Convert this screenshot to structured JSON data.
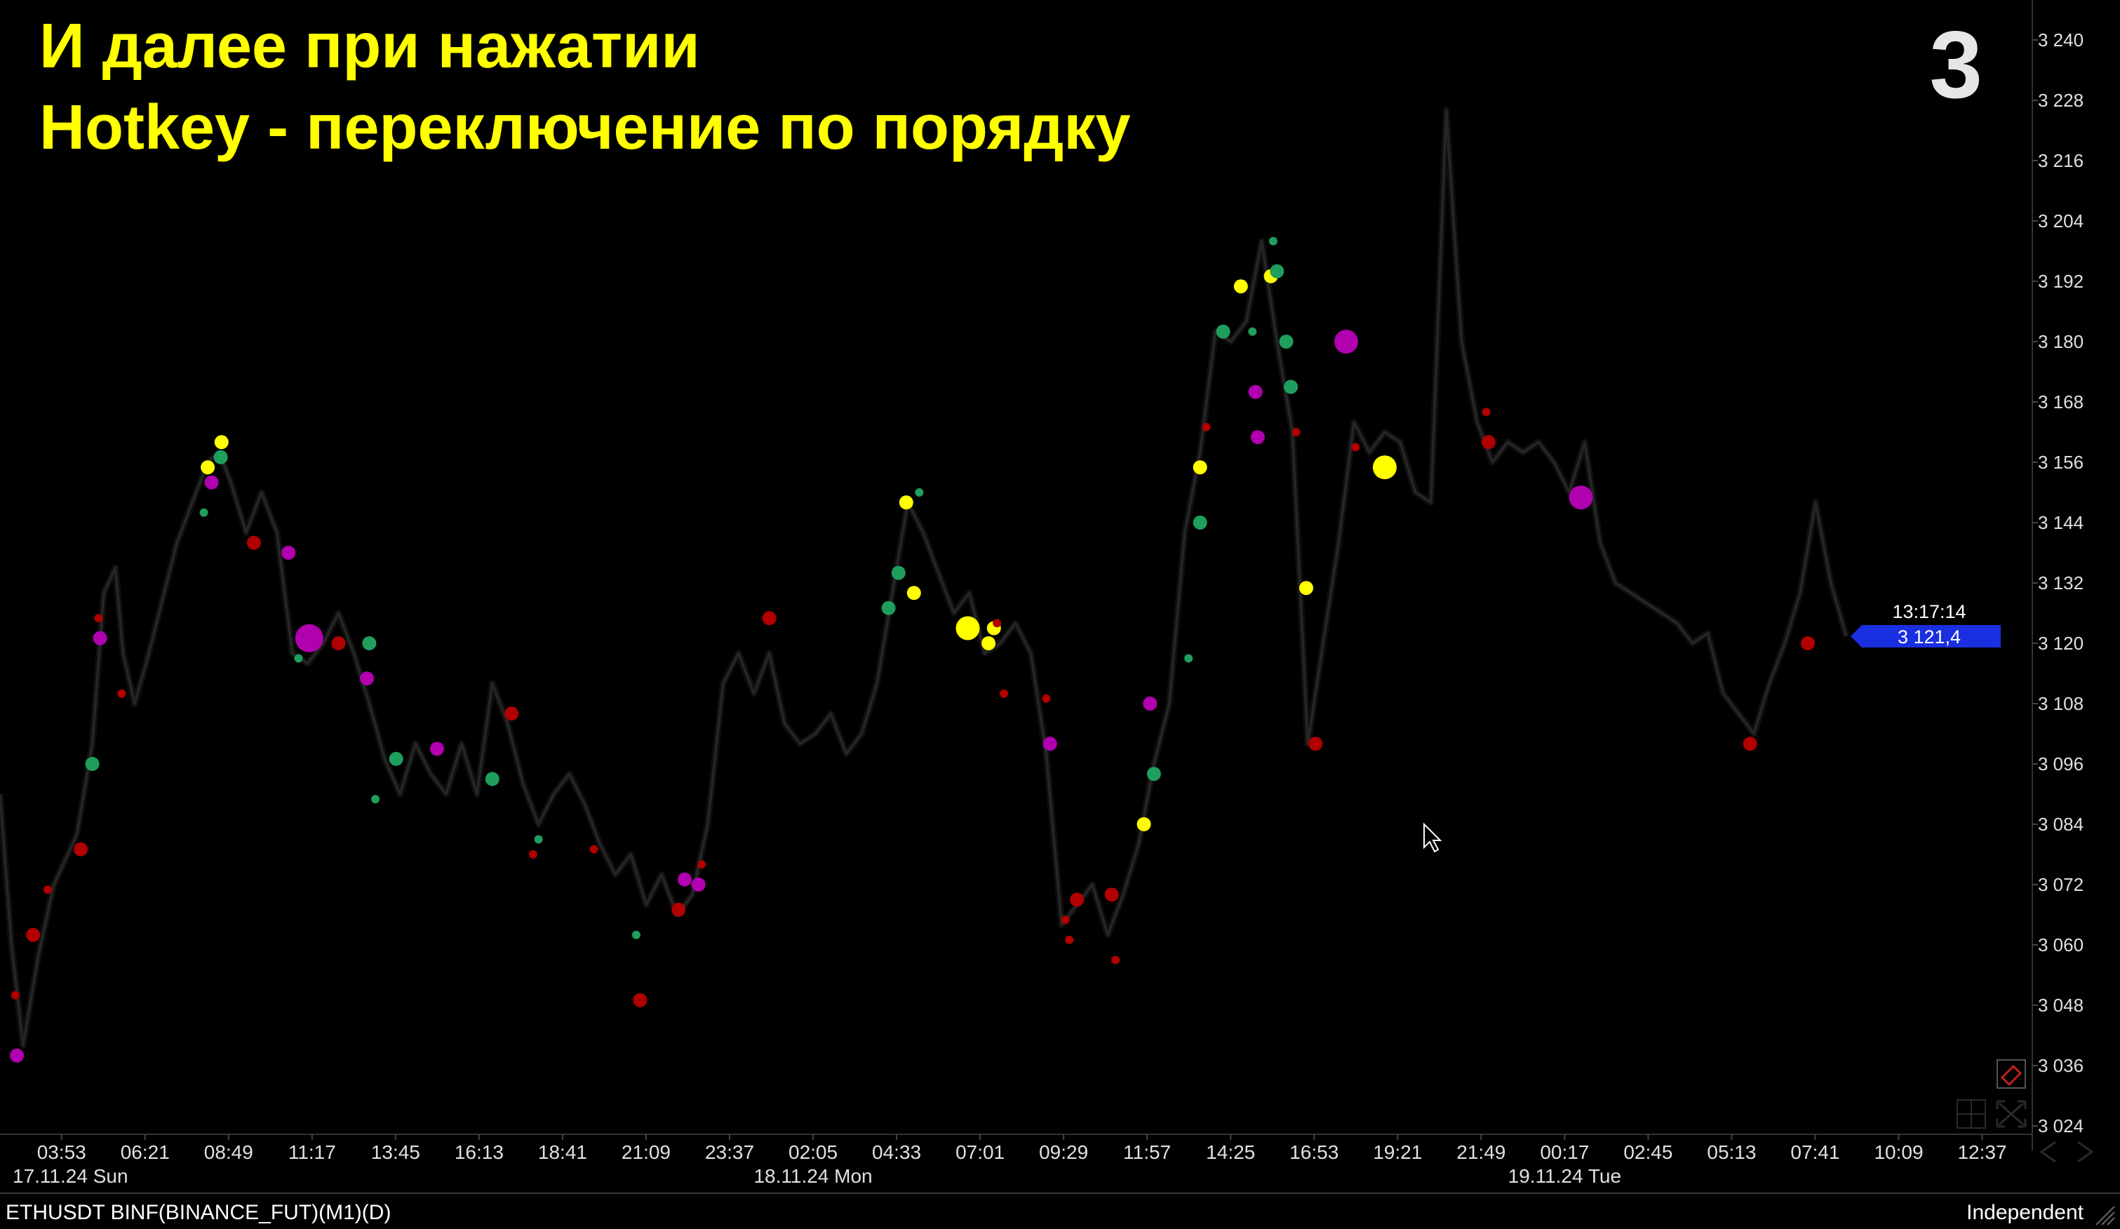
{
  "overlay": {
    "title_line_1": "И далее при нажатии",
    "title_line_2": "Hotkey - переключение по порядку",
    "step_number": "3"
  },
  "status_bar": {
    "symbol": "ETHUSDT BINF(BINANCE_FUT)(M1)(D)",
    "scale_mode": "Independent"
  },
  "crosshair": {
    "time": "13:17:14",
    "price": "3 121,4"
  },
  "icons": [
    "ruler-icon",
    "grid-icon",
    "fullscreen-icon",
    "scroll-left-icon",
    "scroll-right-icon",
    "mouse-cursor-icon"
  ],
  "colors": {
    "background": "#000000",
    "title": "#ffff00",
    "price_line": "#2e2e2e",
    "price_label": "#1a2fe0",
    "dot_red": "#b00000",
    "dot_green": "#1f9e5e",
    "dot_magenta": "#b000b0",
    "dot_yellow": "#ffff00"
  },
  "chart_data": {
    "type": "line",
    "ylim": [
      3024,
      3240
    ],
    "y_ticks": [
      "3 024",
      "3 036",
      "3 048",
      "3 060",
      "3 072",
      "3 084",
      "3 096",
      "3 108",
      "3 120",
      "3 132",
      "3 144",
      "3 156",
      "3 168",
      "3 180",
      "3 192",
      "3 204",
      "3 216",
      "3 228",
      "3 240"
    ],
    "y_tick_values": [
      3024,
      3036,
      3048,
      3060,
      3072,
      3084,
      3096,
      3108,
      3120,
      3132,
      3144,
      3156,
      3168,
      3180,
      3192,
      3204,
      3216,
      3228,
      3240
    ],
    "x_ticks": [
      "03:53",
      "06:21",
      "08:49",
      "11:17",
      "13:45",
      "16:13",
      "18:41",
      "21:09",
      "23:37",
      "02:05",
      "04:33",
      "07:01",
      "09:29",
      "11:57",
      "14:25",
      "16:53",
      "19:21",
      "21:49",
      "00:17",
      "02:45",
      "05:13",
      "07:41",
      "10:09",
      "12:37"
    ],
    "date_labels": [
      "17.11.24 Sun",
      "18.11.24 Mon",
      "19.11.24 Tue"
    ],
    "date_label_at_tick": [
      -1,
      9,
      18
    ],
    "x_tick_start_index": 0.8,
    "xlim": [
      0,
      26.4
    ],
    "grid": false,
    "series": [
      {
        "values": [
          [
            0.0,
            3090
          ],
          [
            0.15,
            3060
          ],
          [
            0.3,
            3040
          ],
          [
            0.5,
            3058
          ],
          [
            0.7,
            3072
          ],
          [
            1.0,
            3082
          ],
          [
            1.2,
            3100
          ],
          [
            1.35,
            3130
          ],
          [
            1.5,
            3135
          ],
          [
            1.6,
            3118
          ],
          [
            1.75,
            3108
          ],
          [
            1.9,
            3116
          ],
          [
            2.1,
            3128
          ],
          [
            2.3,
            3140
          ],
          [
            2.5,
            3148
          ],
          [
            2.7,
            3156
          ],
          [
            2.85,
            3158
          ],
          [
            3.0,
            3152
          ],
          [
            3.2,
            3142
          ],
          [
            3.4,
            3150
          ],
          [
            3.6,
            3142
          ],
          [
            3.8,
            3118
          ],
          [
            4.0,
            3116
          ],
          [
            4.2,
            3120
          ],
          [
            4.4,
            3126
          ],
          [
            4.6,
            3118
          ],
          [
            4.8,
            3108
          ],
          [
            5.0,
            3097
          ],
          [
            5.2,
            3090
          ],
          [
            5.4,
            3100
          ],
          [
            5.6,
            3094
          ],
          [
            5.8,
            3090
          ],
          [
            6.0,
            3100
          ],
          [
            6.2,
            3090
          ],
          [
            6.4,
            3112
          ],
          [
            6.6,
            3104
          ],
          [
            6.8,
            3092
          ],
          [
            7.0,
            3084
          ],
          [
            7.2,
            3090
          ],
          [
            7.4,
            3094
          ],
          [
            7.6,
            3088
          ],
          [
            7.8,
            3080
          ],
          [
            8.0,
            3074
          ],
          [
            8.2,
            3078
          ],
          [
            8.4,
            3068
          ],
          [
            8.6,
            3074
          ],
          [
            8.8,
            3066
          ],
          [
            9.0,
            3070
          ],
          [
            9.2,
            3084
          ],
          [
            9.4,
            3112
          ],
          [
            9.6,
            3118
          ],
          [
            9.8,
            3110
          ],
          [
            10.0,
            3118
          ],
          [
            10.2,
            3104
          ],
          [
            10.4,
            3100
          ],
          [
            10.6,
            3102
          ],
          [
            10.8,
            3106
          ],
          [
            11.0,
            3098
          ],
          [
            11.2,
            3102
          ],
          [
            11.4,
            3112
          ],
          [
            11.6,
            3130
          ],
          [
            11.8,
            3148
          ],
          [
            12.0,
            3142
          ],
          [
            12.2,
            3134
          ],
          [
            12.4,
            3126
          ],
          [
            12.6,
            3130
          ],
          [
            12.8,
            3118
          ],
          [
            13.0,
            3120
          ],
          [
            13.2,
            3124
          ],
          [
            13.4,
            3118
          ],
          [
            13.6,
            3098
          ],
          [
            13.8,
            3064
          ],
          [
            14.0,
            3068
          ],
          [
            14.2,
            3072
          ],
          [
            14.4,
            3062
          ],
          [
            14.6,
            3070
          ],
          [
            14.8,
            3080
          ],
          [
            15.0,
            3096
          ],
          [
            15.2,
            3108
          ],
          [
            15.4,
            3142
          ],
          [
            15.6,
            3158
          ],
          [
            15.8,
            3182
          ],
          [
            16.0,
            3180
          ],
          [
            16.2,
            3184
          ],
          [
            16.4,
            3200
          ],
          [
            16.6,
            3180
          ],
          [
            16.8,
            3162
          ],
          [
            17.0,
            3100
          ],
          [
            17.2,
            3120
          ],
          [
            17.4,
            3140
          ],
          [
            17.6,
            3164
          ],
          [
            17.8,
            3158
          ],
          [
            18.0,
            3162
          ],
          [
            18.2,
            3160
          ],
          [
            18.4,
            3150
          ],
          [
            18.6,
            3148
          ],
          [
            18.8,
            3226
          ],
          [
            19.0,
            3180
          ],
          [
            19.2,
            3164
          ],
          [
            19.4,
            3156
          ],
          [
            19.6,
            3160
          ],
          [
            19.8,
            3158
          ],
          [
            20.0,
            3160
          ],
          [
            20.2,
            3156
          ],
          [
            20.4,
            3150
          ],
          [
            20.6,
            3160
          ],
          [
            20.8,
            3140
          ],
          [
            21.0,
            3132
          ],
          [
            21.2,
            3130
          ],
          [
            21.4,
            3128
          ],
          [
            21.6,
            3126
          ],
          [
            21.8,
            3124
          ],
          [
            22.0,
            3120
          ],
          [
            22.2,
            3122
          ],
          [
            22.4,
            3110
          ],
          [
            22.6,
            3106
          ],
          [
            22.8,
            3102
          ],
          [
            23.0,
            3112
          ],
          [
            23.2,
            3120
          ],
          [
            23.4,
            3130
          ],
          [
            23.6,
            3148
          ],
          [
            23.8,
            3132
          ],
          [
            24.0,
            3121.4
          ]
        ]
      }
    ],
    "markers": [
      {
        "x": 0.22,
        "y": 3038,
        "color": "magenta",
        "size": "m"
      },
      {
        "x": 0.2,
        "y": 3050,
        "color": "red",
        "size": "s"
      },
      {
        "x": 0.43,
        "y": 3062,
        "color": "red",
        "size": "m"
      },
      {
        "x": 0.62,
        "y": 3071,
        "color": "red",
        "size": "s"
      },
      {
        "x": 1.05,
        "y": 3079,
        "color": "red",
        "size": "m"
      },
      {
        "x": 1.2,
        "y": 3096,
        "color": "green",
        "size": "m"
      },
      {
        "x": 1.3,
        "y": 3121,
        "color": "magenta",
        "size": "m"
      },
      {
        "x": 1.28,
        "y": 3125,
        "color": "red",
        "size": "s"
      },
      {
        "x": 1.58,
        "y": 3110,
        "color": "red",
        "size": "s"
      },
      {
        "x": 2.65,
        "y": 3146,
        "color": "green",
        "size": "s"
      },
      {
        "x": 2.7,
        "y": 3155,
        "color": "yellow",
        "size": "m"
      },
      {
        "x": 2.75,
        "y": 3152,
        "color": "magenta",
        "size": "m"
      },
      {
        "x": 2.87,
        "y": 3157,
        "color": "green",
        "size": "m"
      },
      {
        "x": 2.88,
        "y": 3160,
        "color": "yellow",
        "size": "m"
      },
      {
        "x": 3.3,
        "y": 3140,
        "color": "red",
        "size": "m"
      },
      {
        "x": 3.75,
        "y": 3138,
        "color": "magenta",
        "size": "m"
      },
      {
        "x": 3.88,
        "y": 3117,
        "color": "green",
        "size": "s"
      },
      {
        "x": 4.02,
        "y": 3121,
        "color": "magenta",
        "size": "xl"
      },
      {
        "x": 4.4,
        "y": 3120,
        "color": "red",
        "size": "m"
      },
      {
        "x": 4.77,
        "y": 3113,
        "color": "magenta",
        "size": "m"
      },
      {
        "x": 4.8,
        "y": 3120,
        "color": "green",
        "size": "m"
      },
      {
        "x": 4.88,
        "y": 3089,
        "color": "green",
        "size": "s"
      },
      {
        "x": 5.15,
        "y": 3097,
        "color": "green",
        "size": "m"
      },
      {
        "x": 5.68,
        "y": 3099,
        "color": "magenta",
        "size": "m"
      },
      {
        "x": 6.4,
        "y": 3093,
        "color": "green",
        "size": "m"
      },
      {
        "x": 6.65,
        "y": 3106,
        "color": "red",
        "size": "m"
      },
      {
        "x": 6.93,
        "y": 3078,
        "color": "red",
        "size": "s"
      },
      {
        "x": 7.0,
        "y": 3081,
        "color": "green",
        "size": "s"
      },
      {
        "x": 7.72,
        "y": 3079,
        "color": "red",
        "size": "s"
      },
      {
        "x": 8.27,
        "y": 3062,
        "color": "green",
        "size": "s"
      },
      {
        "x": 8.32,
        "y": 3049,
        "color": "red",
        "size": "m"
      },
      {
        "x": 8.82,
        "y": 3067,
        "color": "red",
        "size": "m"
      },
      {
        "x": 8.9,
        "y": 3073,
        "color": "magenta",
        "size": "m"
      },
      {
        "x": 9.08,
        "y": 3072,
        "color": "magenta",
        "size": "m"
      },
      {
        "x": 9.12,
        "y": 3076,
        "color": "red",
        "size": "s"
      },
      {
        "x": 10.0,
        "y": 3125,
        "color": "red",
        "size": "m"
      },
      {
        "x": 11.55,
        "y": 3127,
        "color": "green",
        "size": "m"
      },
      {
        "x": 11.68,
        "y": 3134,
        "color": "green",
        "size": "m"
      },
      {
        "x": 11.78,
        "y": 3148,
        "color": "yellow",
        "size": "m"
      },
      {
        "x": 11.88,
        "y": 3130,
        "color": "yellow",
        "size": "m"
      },
      {
        "x": 11.95,
        "y": 3150,
        "color": "green",
        "size": "s"
      },
      {
        "x": 12.58,
        "y": 3123,
        "color": "yellow",
        "size": "l"
      },
      {
        "x": 12.85,
        "y": 3120,
        "color": "yellow",
        "size": "m"
      },
      {
        "x": 12.92,
        "y": 3123,
        "color": "yellow",
        "size": "m"
      },
      {
        "x": 12.96,
        "y": 3124,
        "color": "red",
        "size": "s"
      },
      {
        "x": 13.05,
        "y": 3110,
        "color": "red",
        "size": "s"
      },
      {
        "x": 13.6,
        "y": 3109,
        "color": "red",
        "size": "s"
      },
      {
        "x": 13.65,
        "y": 3100,
        "color": "magenta",
        "size": "m"
      },
      {
        "x": 13.85,
        "y": 3065,
        "color": "red",
        "size": "s"
      },
      {
        "x": 13.9,
        "y": 3061,
        "color": "red",
        "size": "s"
      },
      {
        "x": 14.0,
        "y": 3069,
        "color": "red",
        "size": "m"
      },
      {
        "x": 14.45,
        "y": 3070,
        "color": "red",
        "size": "m"
      },
      {
        "x": 14.5,
        "y": 3057,
        "color": "red",
        "size": "s"
      },
      {
        "x": 14.87,
        "y": 3084,
        "color": "yellow",
        "size": "m"
      },
      {
        "x": 14.95,
        "y": 3108,
        "color": "magenta",
        "size": "m"
      },
      {
        "x": 15.0,
        "y": 3094,
        "color": "green",
        "size": "m"
      },
      {
        "x": 15.45,
        "y": 3117,
        "color": "green",
        "size": "s"
      },
      {
        "x": 15.6,
        "y": 3144,
        "color": "green",
        "size": "m"
      },
      {
        "x": 15.6,
        "y": 3155,
        "color": "yellow",
        "size": "m"
      },
      {
        "x": 15.68,
        "y": 3163,
        "color": "red",
        "size": "s"
      },
      {
        "x": 15.9,
        "y": 3182,
        "color": "green",
        "size": "m"
      },
      {
        "x": 16.13,
        "y": 3191,
        "color": "yellow",
        "size": "m"
      },
      {
        "x": 16.28,
        "y": 3182,
        "color": "green",
        "size": "s"
      },
      {
        "x": 16.32,
        "y": 3170,
        "color": "magenta",
        "size": "m"
      },
      {
        "x": 16.35,
        "y": 3161,
        "color": "magenta",
        "size": "m"
      },
      {
        "x": 16.52,
        "y": 3193,
        "color": "yellow",
        "size": "m"
      },
      {
        "x": 16.55,
        "y": 3200,
        "color": "green",
        "size": "s"
      },
      {
        "x": 16.6,
        "y": 3194,
        "color": "green",
        "size": "m"
      },
      {
        "x": 16.72,
        "y": 3180,
        "color": "green",
        "size": "m"
      },
      {
        "x": 16.78,
        "y": 3171,
        "color": "green",
        "size": "m"
      },
      {
        "x": 16.85,
        "y": 3162,
        "color": "red",
        "size": "s"
      },
      {
        "x": 16.98,
        "y": 3131,
        "color": "yellow",
        "size": "m"
      },
      {
        "x": 17.1,
        "y": 3100,
        "color": "red",
        "size": "m"
      },
      {
        "x": 17.5,
        "y": 3180,
        "color": "magenta",
        "size": "l"
      },
      {
        "x": 17.62,
        "y": 3159,
        "color": "red",
        "size": "s"
      },
      {
        "x": 18.0,
        "y": 3155,
        "color": "yellow",
        "size": "l"
      },
      {
        "x": 19.32,
        "y": 3166,
        "color": "red",
        "size": "s"
      },
      {
        "x": 19.35,
        "y": 3160,
        "color": "red",
        "size": "m"
      },
      {
        "x": 20.55,
        "y": 3149,
        "color": "magenta",
        "size": "l"
      },
      {
        "x": 22.75,
        "y": 3100,
        "color": "red",
        "size": "m"
      },
      {
        "x": 23.5,
        "y": 3120,
        "color": "red",
        "size": "m"
      }
    ]
  }
}
